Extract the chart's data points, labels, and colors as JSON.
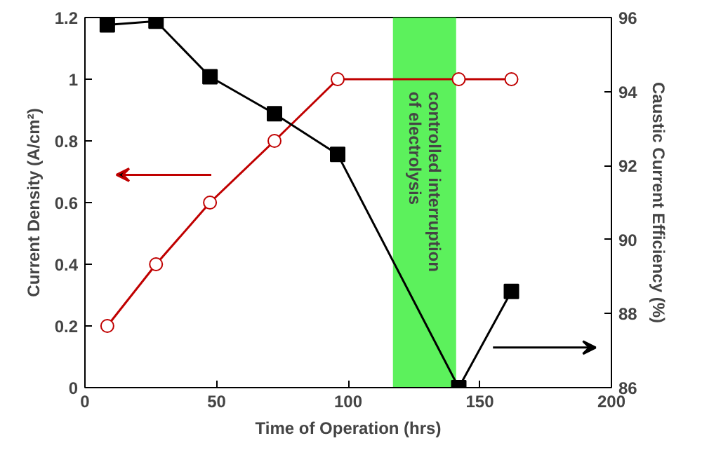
{
  "chart_data": {
    "type": "line",
    "xlabel": "Time of Operation (hrs)",
    "ylabel": "Current Density (A/cm²)",
    "y2label": "Caustic Current Efficiency (%)",
    "xlim": [
      0,
      200
    ],
    "xticks": [
      0,
      50,
      100,
      150,
      200
    ],
    "ylim": [
      0,
      1.2
    ],
    "yticks": [
      0,
      0.2,
      0.4,
      0.6,
      0.8,
      1,
      1.2
    ],
    "y2lim": [
      86,
      96
    ],
    "y2ticks": [
      86,
      88,
      90,
      92,
      94,
      96
    ],
    "series": [
      {
        "color": "#c00000",
        "marker": "circle",
        "x": [
          8.5,
          27,
          47.5,
          72,
          96,
          142,
          162
        ],
        "values": [
          0.2,
          0.4,
          0.6,
          0.8,
          1.0,
          1.0,
          1.0
        ]
      },
      {
        "color": "#000000",
        "marker": "square",
        "axis": "y2",
        "x": [
          8.5,
          27,
          47.5,
          72,
          96,
          142,
          162
        ],
        "values": [
          95.8,
          95.9,
          94.4,
          93.4,
          92.3,
          86.0,
          88.6
        ]
      }
    ],
    "bands": [
      {
        "axis": "x",
        "from": 117,
        "to": 141,
        "label": "controlled interruption\nof electrolysis",
        "color": "#33ee33"
      }
    ]
  }
}
